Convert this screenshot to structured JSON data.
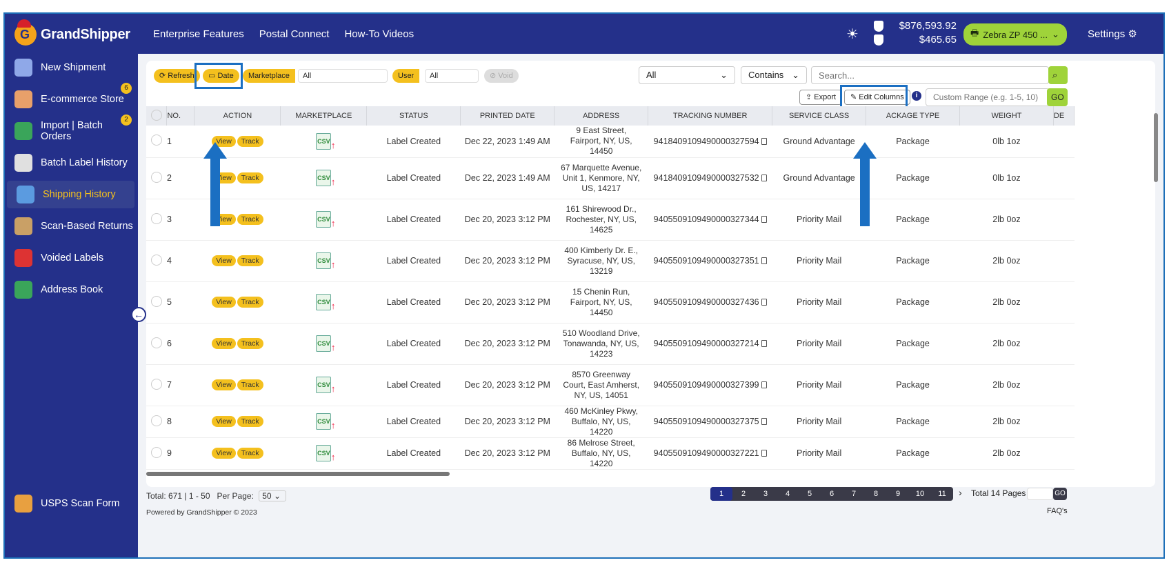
{
  "app": {
    "name": "GrandShipper"
  },
  "nav": [
    "Enterprise Features",
    "Postal Connect",
    "How-To Videos"
  ],
  "balances": {
    "primary": "$876,593.92",
    "secondary": "$465.65"
  },
  "printer": {
    "label": "Zebra ZP 450 ..."
  },
  "settings": {
    "label": "Settings"
  },
  "sidebar": {
    "items": [
      {
        "label": "New Shipment"
      },
      {
        "label": "E-commerce Store",
        "badge": "6"
      },
      {
        "label": "Import | Batch Orders",
        "badge": "2"
      },
      {
        "label": "Batch Label History"
      },
      {
        "label": "Shipping History"
      },
      {
        "label": "Scan-Based Returns"
      },
      {
        "label": "Voided Labels"
      },
      {
        "label": "Address Book"
      }
    ],
    "bottom": {
      "label": "USPS Scan Form"
    }
  },
  "toolbar": {
    "refresh": "Refresh",
    "date": "Date",
    "marketplace_label": "Marketplace",
    "marketplace_value": "All",
    "user_label": "User",
    "user_value": "All",
    "void": "Void",
    "filter_select": "All",
    "match_select": "Contains",
    "search_placeholder": "Search...",
    "export": "Export",
    "edit_columns": "Edit Columns",
    "range_placeholder": "Custom Range (e.g. 1-5, 10)",
    "go": "GO"
  },
  "table": {
    "columns": [
      "No.",
      "Action",
      "Marketplace",
      "Status",
      "Printed Date",
      "Address",
      "Tracking Number",
      "Service Class",
      "ackage Type",
      "Weight",
      "De"
    ],
    "action_view": "View",
    "action_track": "Track",
    "marketplace_icon": "CSV",
    "rows": [
      {
        "no": "1",
        "status": "Label Created",
        "date": "Dec 22, 2023 1:49 AM",
        "addr": "9 East Street, Fairport, NY, US, 14450",
        "tracking": "9418409109490000327594",
        "service": "Ground Advantage",
        "ptype": "Package",
        "weight": "0lb 1oz"
      },
      {
        "no": "2",
        "status": "Label Created",
        "date": "Dec 22, 2023 1:49 AM",
        "addr": "67 Marquette Avenue, Unit 1, Kenmore, NY, US, 14217",
        "tracking": "9418409109490000327532",
        "service": "Ground Advantage",
        "ptype": "Package",
        "weight": "0lb 1oz"
      },
      {
        "no": "3",
        "status": "Label Created",
        "date": "Dec 20, 2023 3:12 PM",
        "addr": "161 Shirewood Dr., Rochester, NY, US, 14625",
        "tracking": "9405509109490000327344",
        "service": "Priority Mail",
        "ptype": "Package",
        "weight": "2lb 0oz"
      },
      {
        "no": "4",
        "status": "Label Created",
        "date": "Dec 20, 2023 3:12 PM",
        "addr": "400 Kimberly Dr. E., Syracuse, NY, US, 13219",
        "tracking": "9405509109490000327351",
        "service": "Priority Mail",
        "ptype": "Package",
        "weight": "2lb 0oz"
      },
      {
        "no": "5",
        "status": "Label Created",
        "date": "Dec 20, 2023 3:12 PM",
        "addr": "15 Chenin Run, Fairport, NY, US, 14450",
        "tracking": "9405509109490000327436",
        "service": "Priority Mail",
        "ptype": "Package",
        "weight": "2lb 0oz"
      },
      {
        "no": "6",
        "status": "Label Created",
        "date": "Dec 20, 2023 3:12 PM",
        "addr": "510 Woodland Drive, Tonawanda, NY, US, 14223",
        "tracking": "9405509109490000327214",
        "service": "Priority Mail",
        "ptype": "Package",
        "weight": "2lb 0oz"
      },
      {
        "no": "7",
        "status": "Label Created",
        "date": "Dec 20, 2023 3:12 PM",
        "addr": "8570 Greenway Court, East Amherst, NY, US, 14051",
        "tracking": "9405509109490000327399",
        "service": "Priority Mail",
        "ptype": "Package",
        "weight": "2lb 0oz"
      },
      {
        "no": "8",
        "status": "Label Created",
        "date": "Dec 20, 2023 3:12 PM",
        "addr": "460 McKinley Pkwy, Buffalo, NY, US, 14220",
        "tracking": "9405509109490000327375",
        "service": "Priority Mail",
        "ptype": "Package",
        "weight": "2lb 0oz"
      },
      {
        "no": "9",
        "status": "Label Created",
        "date": "Dec 20, 2023 3:12 PM",
        "addr": "86 Melrose Street, Buffalo, NY, US, 14220",
        "tracking": "9405509109490000327221",
        "service": "Priority Mail",
        "ptype": "Package",
        "weight": "2lb 0oz"
      }
    ]
  },
  "footer": {
    "total": "Total: 671 | 1 - 50",
    "per_page_label": "Per Page:",
    "per_page": "50",
    "powered": "Powered by GrandShipper © 2023",
    "total_pages": "Total 14 Pages",
    "go": "GO",
    "faq": "FAQ's",
    "pages": [
      "1",
      "2",
      "3",
      "4",
      "5",
      "6",
      "7",
      "8",
      "9",
      "10",
      "11"
    ],
    "current_page": "1"
  },
  "colors": {
    "primary": "#24308a",
    "accent": "#f4c01e",
    "highlight": "#1b6fc2",
    "printer": "#9fd33a"
  }
}
